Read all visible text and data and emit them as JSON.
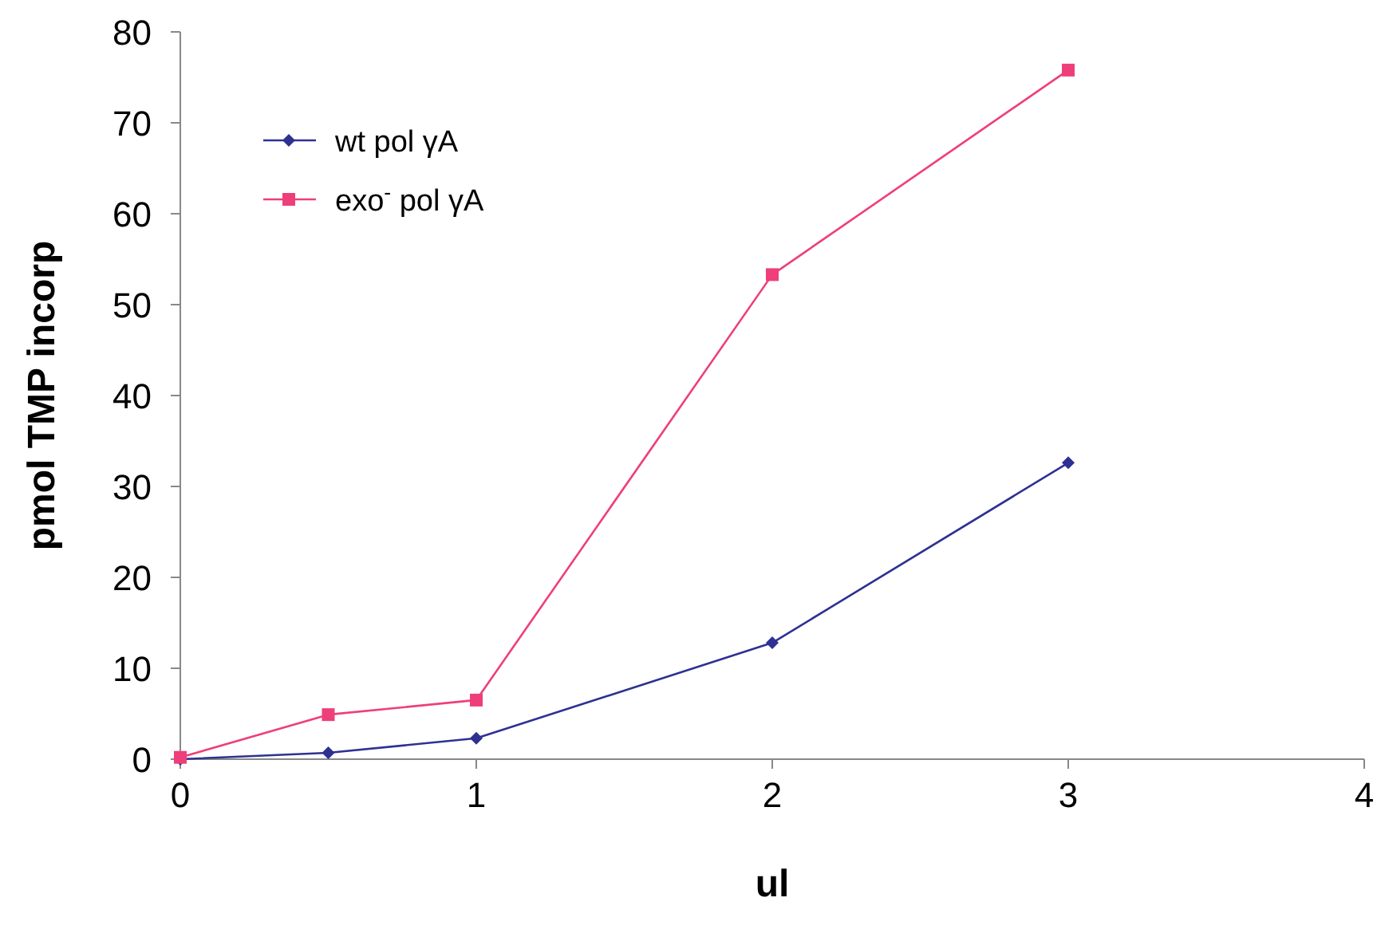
{
  "chart_data": {
    "type": "line",
    "xlabel": "ul",
    "ylabel": "pmol TMP incorp",
    "xlim": [
      0,
      4
    ],
    "ylim": [
      0,
      80
    ],
    "xticks": [
      0,
      1,
      2,
      3,
      4
    ],
    "yticks": [
      0,
      10,
      20,
      30,
      40,
      50,
      60,
      70,
      80
    ],
    "legend": "top left",
    "grid": false,
    "series": [
      {
        "name": "wt pol γA",
        "color": "#2e3192",
        "marker": "diamond",
        "x": [
          0,
          0.5,
          1,
          2,
          3
        ],
        "values": [
          0,
          0.7,
          2.3,
          12.8,
          32.6
        ]
      },
      {
        "name": "exo$^{-}$ pol γA",
        "color": "#ee3f7a",
        "marker": "square",
        "x": [
          0,
          0.5,
          1,
          2,
          3
        ],
        "values": [
          0.2,
          4.9,
          6.5,
          53.3,
          75.8
        ]
      }
    ]
  }
}
